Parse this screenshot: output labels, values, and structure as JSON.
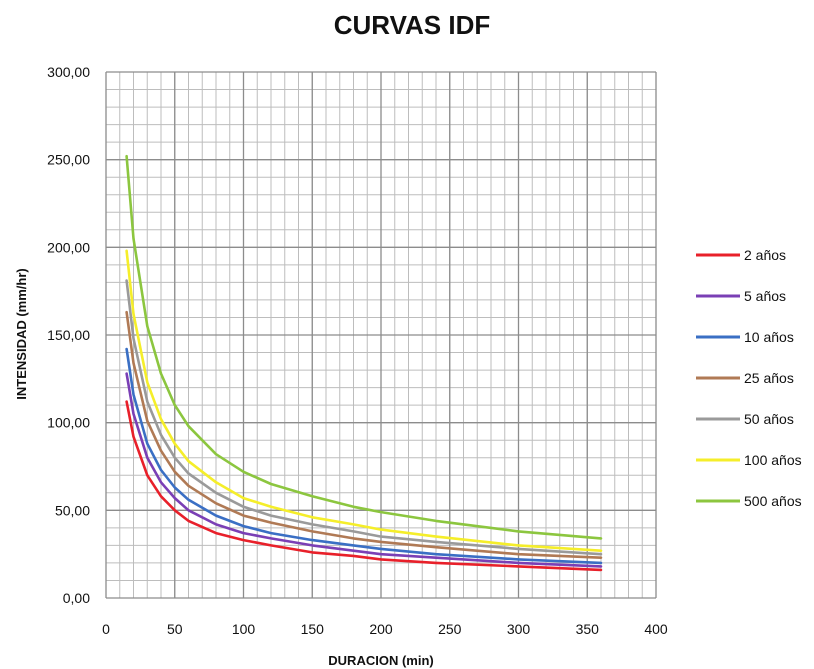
{
  "chart_data": {
    "type": "line",
    "title": "CURVAS IDF",
    "xlabel": "DURACION (min)",
    "ylabel": "INTENSIDAD (mm/hr)",
    "xlim": [
      0,
      400
    ],
    "ylim": [
      0,
      300
    ],
    "x_ticks": [
      "0",
      "50",
      "100",
      "150",
      "200",
      "250",
      "300",
      "350",
      "400"
    ],
    "y_ticks": [
      "0,00",
      "50,00",
      "100,00",
      "150,00",
      "200,00",
      "250,00",
      "300,00"
    ],
    "grid": true,
    "legend_position": "right",
    "x": [
      15,
      20,
      30,
      40,
      50,
      60,
      80,
      100,
      120,
      150,
      180,
      200,
      240,
      300,
      360
    ],
    "series": [
      {
        "name": "2 años",
        "color": "#e8202a",
        "values": [
          112,
          92,
          70,
          58,
          50,
          44,
          37,
          33,
          30,
          26,
          24,
          22,
          20,
          18,
          16
        ]
      },
      {
        "name": "5 años",
        "color": "#7a3fb5",
        "values": [
          128,
          105,
          80,
          66,
          57,
          50,
          42,
          37,
          34,
          30,
          27,
          25,
          23,
          20,
          18
        ]
      },
      {
        "name": "10 años",
        "color": "#3a6fc4",
        "values": [
          142,
          116,
          88,
          73,
          63,
          56,
          47,
          41,
          37,
          33,
          30,
          28,
          25,
          22,
          20
        ]
      },
      {
        "name": "25 años",
        "color": "#b07a55",
        "values": [
          163,
          134,
          101,
          84,
          72,
          64,
          54,
          47,
          43,
          38,
          34,
          32,
          29,
          25,
          23
        ]
      },
      {
        "name": "50 años",
        "color": "#9a9a9a",
        "values": [
          181,
          148,
          112,
          93,
          80,
          71,
          60,
          52,
          47,
          42,
          38,
          35,
          32,
          28,
          25
        ]
      },
      {
        "name": "100 años",
        "color": "#f5ee2a",
        "values": [
          198,
          162,
          123,
          102,
          88,
          78,
          66,
          57,
          52,
          46,
          42,
          39,
          35,
          30,
          27
        ]
      },
      {
        "name": "500 años",
        "color": "#8cc63f",
        "values": [
          252,
          205,
          155,
          128,
          110,
          98,
          82,
          72,
          65,
          58,
          52,
          49,
          44,
          38,
          34
        ]
      }
    ]
  }
}
